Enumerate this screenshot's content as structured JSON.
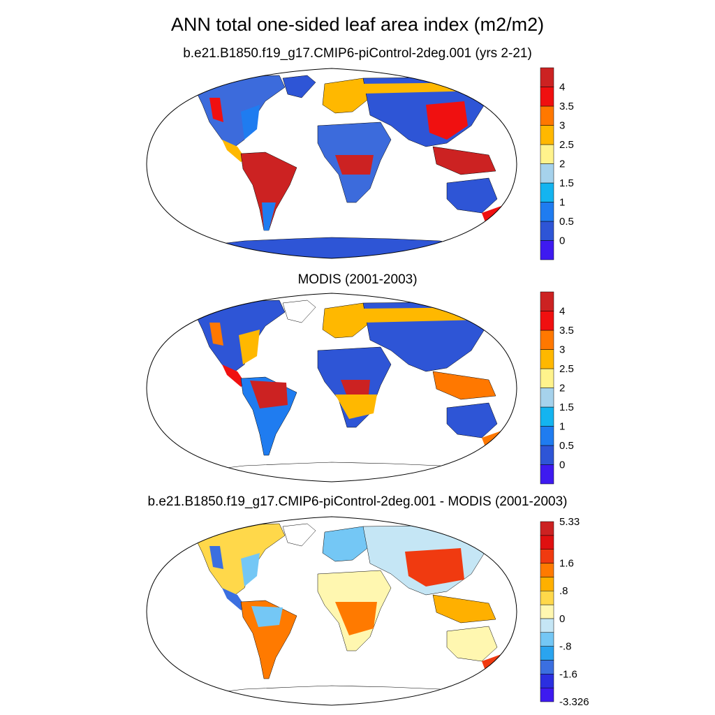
{
  "title": "ANN total one-sided leaf area index (m2/m2)",
  "panels": [
    {
      "subtitle": "b.e21.B1850.f19_g17.CMIP6-piControl-2deg.001 (yrs 2-21)",
      "colorbar": {
        "colors": [
          "#3e1af0",
          "#2e55d6",
          "#1f7cf0",
          "#14b4f0",
          "#a6d2ec",
          "#fff38c",
          "#ffb800",
          "#ff7800",
          "#f01010",
          "#cc2222"
        ],
        "labels": [
          "0",
          "0.5",
          "1",
          "1.5",
          "2",
          "2.5",
          "3",
          "3.5",
          "4"
        ]
      }
    },
    {
      "subtitle": "MODIS (2001-2003)",
      "colorbar": {
        "colors": [
          "#3e1af0",
          "#2e55d6",
          "#1f7cf0",
          "#14b4f0",
          "#a6d2ec",
          "#fff38c",
          "#ffb800",
          "#ff7800",
          "#f01010",
          "#cc2222"
        ],
        "labels": [
          "0",
          "0.5",
          "1",
          "1.5",
          "2",
          "2.5",
          "3",
          "3.5",
          "4"
        ]
      }
    },
    {
      "subtitle": "b.e21.B1850.f19_g17.CMIP6-piControl-2deg.001 - MODIS (2001-2003)",
      "colorbar": {
        "colors": [
          "#3e1af0",
          "#2b2fe0",
          "#3b6fe0",
          "#2aa4ef",
          "#74c7f5",
          "#c5e6f5",
          "#fff7b0",
          "#ffd84a",
          "#ffb000",
          "#ff7a00",
          "#f03a10",
          "#e01010",
          "#cc2222"
        ],
        "labels": [
          "5.33",
          "1.6",
          ".8",
          "0",
          "-.8",
          "-1.6",
          "-3.326"
        ]
      }
    }
  ]
}
